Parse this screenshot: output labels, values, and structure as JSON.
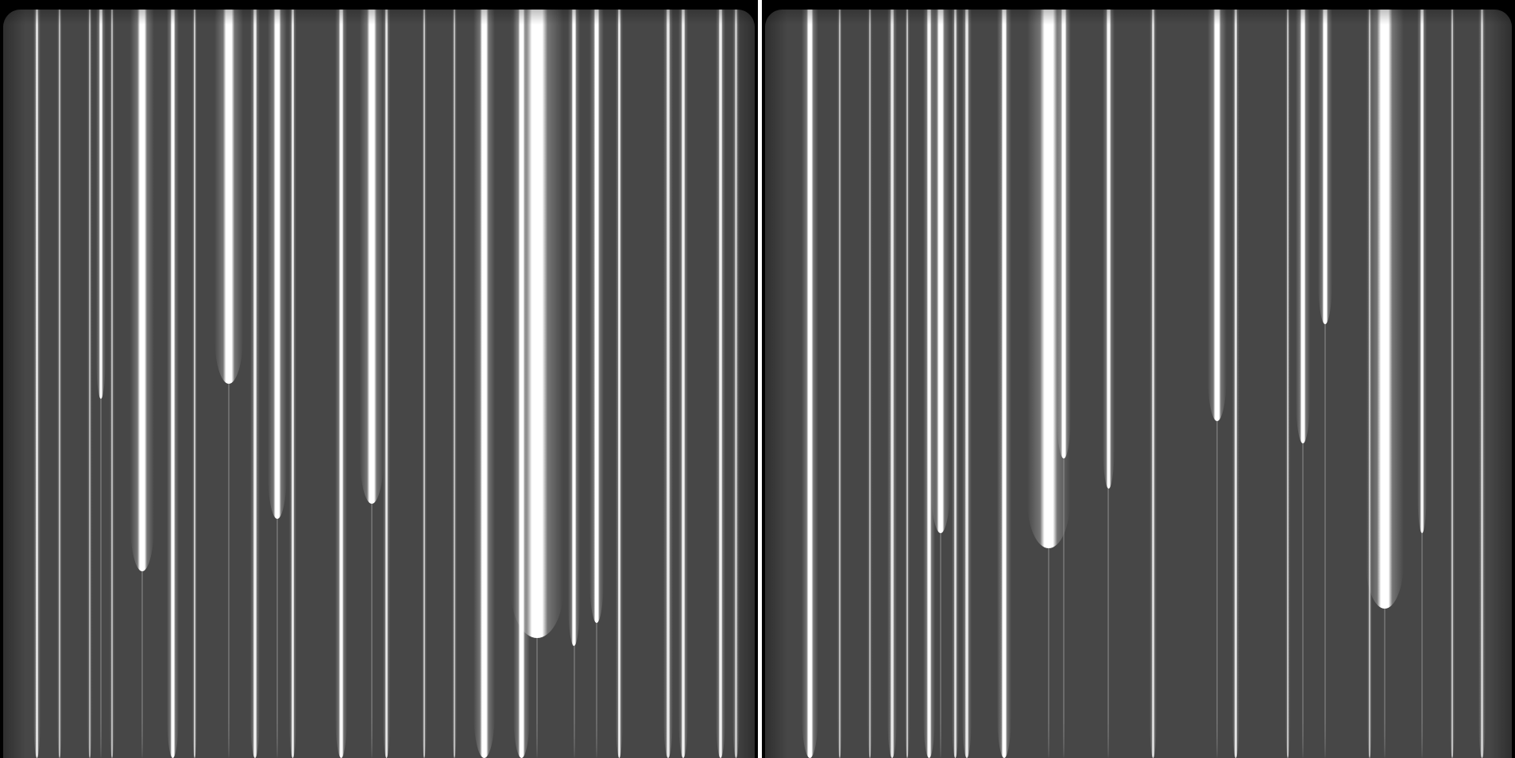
{
  "image": {
    "description_type": "spectrograph-detector-frames",
    "panels": [
      {
        "id": "left",
        "lines": [
          {
            "pos": 0.045,
            "w": 3,
            "b": 0.85,
            "len": 1.0
          },
          {
            "pos": 0.075,
            "w": 2,
            "b": 0.6,
            "len": 1.0
          },
          {
            "pos": 0.115,
            "w": 2,
            "b": 0.55,
            "len": 1.0
          },
          {
            "pos": 0.13,
            "w": 4,
            "b": 0.95,
            "len": 0.52
          },
          {
            "pos": 0.145,
            "w": 2,
            "b": 0.6,
            "len": 1.0
          },
          {
            "pos": 0.185,
            "w": 10,
            "b": 1.0,
            "len": 0.75
          },
          {
            "pos": 0.226,
            "w": 5,
            "b": 1.0,
            "len": 1.0
          },
          {
            "pos": 0.255,
            "w": 2,
            "b": 0.7,
            "len": 1.0
          },
          {
            "pos": 0.3,
            "w": 12,
            "b": 1.0,
            "len": 0.5
          },
          {
            "pos": 0.335,
            "w": 4,
            "b": 0.9,
            "len": 1.0
          },
          {
            "pos": 0.365,
            "w": 8,
            "b": 1.0,
            "len": 0.68
          },
          {
            "pos": 0.385,
            "w": 3,
            "b": 0.9,
            "len": 1.0
          },
          {
            "pos": 0.45,
            "w": 5,
            "b": 0.95,
            "len": 1.0
          },
          {
            "pos": 0.49,
            "w": 10,
            "b": 1.0,
            "len": 0.66
          },
          {
            "pos": 0.51,
            "w": 3,
            "b": 0.85,
            "len": 1.0
          },
          {
            "pos": 0.56,
            "w": 2,
            "b": 0.65,
            "len": 1.0
          },
          {
            "pos": 0.6,
            "w": 2,
            "b": 0.6,
            "len": 1.0
          },
          {
            "pos": 0.64,
            "w": 9,
            "b": 1.0,
            "len": 1.0
          },
          {
            "pos": 0.69,
            "w": 7,
            "b": 1.0,
            "len": 1.0
          },
          {
            "pos": 0.71,
            "w": 22,
            "b": 1.0,
            "len": 0.84
          },
          {
            "pos": 0.76,
            "w": 5,
            "b": 1.0,
            "len": 0.85
          },
          {
            "pos": 0.79,
            "w": 6,
            "b": 1.0,
            "len": 0.82
          },
          {
            "pos": 0.82,
            "w": 3,
            "b": 0.9,
            "len": 1.0
          },
          {
            "pos": 0.885,
            "w": 4,
            "b": 0.85,
            "len": 1.0
          },
          {
            "pos": 0.905,
            "w": 4,
            "b": 0.9,
            "len": 1.0
          },
          {
            "pos": 0.955,
            "w": 4,
            "b": 0.9,
            "len": 1.0
          },
          {
            "pos": 0.975,
            "w": 3,
            "b": 0.75,
            "len": 1.0
          }
        ]
      },
      {
        "id": "right",
        "lines": [
          {
            "pos": 0.06,
            "w": 7,
            "b": 1.0,
            "len": 1.0
          },
          {
            "pos": 0.1,
            "w": 2,
            "b": 0.6,
            "len": 1.0
          },
          {
            "pos": 0.14,
            "w": 2,
            "b": 0.55,
            "len": 1.0
          },
          {
            "pos": 0.17,
            "w": 4,
            "b": 0.85,
            "len": 1.0
          },
          {
            "pos": 0.19,
            "w": 2,
            "b": 0.65,
            "len": 1.0
          },
          {
            "pos": 0.22,
            "w": 5,
            "b": 0.95,
            "len": 1.0
          },
          {
            "pos": 0.235,
            "w": 8,
            "b": 1.0,
            "len": 0.7
          },
          {
            "pos": 0.255,
            "w": 3,
            "b": 0.8,
            "len": 1.0
          },
          {
            "pos": 0.27,
            "w": 4,
            "b": 0.85,
            "len": 1.0
          },
          {
            "pos": 0.32,
            "w": 6,
            "b": 1.0,
            "len": 1.0
          },
          {
            "pos": 0.38,
            "w": 18,
            "b": 1.0,
            "len": 0.72
          },
          {
            "pos": 0.4,
            "w": 6,
            "b": 1.0,
            "len": 0.6
          },
          {
            "pos": 0.46,
            "w": 5,
            "b": 0.95,
            "len": 0.64
          },
          {
            "pos": 0.52,
            "w": 3,
            "b": 0.8,
            "len": 1.0
          },
          {
            "pos": 0.605,
            "w": 8,
            "b": 1.0,
            "len": 0.55
          },
          {
            "pos": 0.63,
            "w": 3,
            "b": 0.85,
            "len": 1.0
          },
          {
            "pos": 0.7,
            "w": 2,
            "b": 0.65,
            "len": 1.0
          },
          {
            "pos": 0.72,
            "w": 6,
            "b": 1.0,
            "len": 0.58
          },
          {
            "pos": 0.75,
            "w": 6,
            "b": 1.0,
            "len": 0.42
          },
          {
            "pos": 0.81,
            "w": 2,
            "b": 0.6,
            "len": 1.0
          },
          {
            "pos": 0.83,
            "w": 16,
            "b": 1.0,
            "len": 0.8
          },
          {
            "pos": 0.88,
            "w": 4,
            "b": 0.95,
            "len": 0.7
          },
          {
            "pos": 0.92,
            "w": 2,
            "b": 0.65,
            "len": 1.0
          },
          {
            "pos": 0.96,
            "w": 3,
            "b": 0.7,
            "len": 1.0
          }
        ]
      }
    ]
  }
}
